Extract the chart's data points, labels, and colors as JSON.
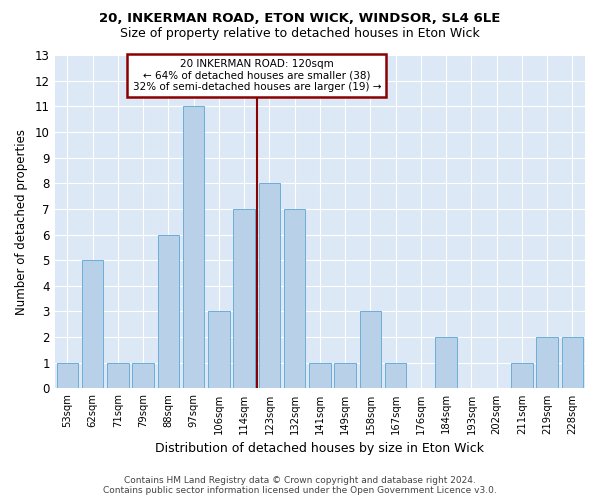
{
  "title1": "20, INKERMAN ROAD, ETON WICK, WINDSOR, SL4 6LE",
  "title2": "Size of property relative to detached houses in Eton Wick",
  "xlabel": "Distribution of detached houses by size in Eton Wick",
  "ylabel": "Number of detached properties",
  "categories": [
    "53sqm",
    "62sqm",
    "71sqm",
    "79sqm",
    "88sqm",
    "97sqm",
    "106sqm",
    "114sqm",
    "123sqm",
    "132sqm",
    "141sqm",
    "149sqm",
    "158sqm",
    "167sqm",
    "176sqm",
    "184sqm",
    "193sqm",
    "202sqm",
    "211sqm",
    "219sqm",
    "228sqm"
  ],
  "values": [
    1,
    5,
    1,
    1,
    6,
    11,
    3,
    7,
    8,
    7,
    1,
    1,
    3,
    1,
    0,
    2,
    0,
    0,
    1,
    2,
    2
  ],
  "bar_color": "#b8d0e8",
  "bar_edge_color": "#6baed6",
  "subject_label": "20 INKERMAN ROAD: 120sqm",
  "annotation_line1": "← 64% of detached houses are smaller (38)",
  "annotation_line2": "32% of semi-detached houses are larger (19) →",
  "vline_color": "#8b0000",
  "box_edge_color": "#8b0000",
  "ylim_max": 13,
  "yticks": [
    0,
    1,
    2,
    3,
    4,
    5,
    6,
    7,
    8,
    9,
    10,
    11,
    12,
    13
  ],
  "bg_color": "#dce8f5",
  "grid_color": "#ffffff",
  "fig_bg_color": "#ffffff",
  "footnote1": "Contains HM Land Registry data © Crown copyright and database right 2024.",
  "footnote2": "Contains public sector information licensed under the Open Government Licence v3.0."
}
